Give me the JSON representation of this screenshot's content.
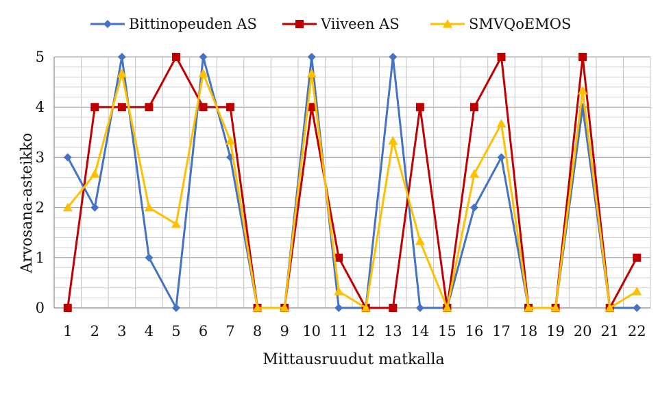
{
  "chart_data": {
    "type": "line",
    "title": "",
    "xlabel": "Mittausruudut matkalla",
    "ylabel": "Arvosana-asteikko",
    "ylim": [
      0,
      5
    ],
    "yticks": [
      "0",
      "1",
      "2",
      "3",
      "4",
      "5"
    ],
    "categories": [
      "1",
      "2",
      "3",
      "4",
      "5",
      "6",
      "7",
      "8",
      "9",
      "10",
      "11",
      "12",
      "13",
      "14",
      "15",
      "16",
      "17",
      "18",
      "19",
      "20",
      "21",
      "22"
    ],
    "grid": true,
    "legend_position": "top",
    "series": [
      {
        "name": "Bittinopeuden AS",
        "color": "#4472C4",
        "marker": "diamond",
        "values": [
          3,
          2,
          5,
          1,
          0,
          5,
          3,
          0,
          0,
          5,
          0,
          0,
          5,
          0,
          0,
          2,
          3,
          0,
          0,
          4,
          0,
          0
        ]
      },
      {
        "name": "Viiveen AS",
        "color": "#C00000",
        "marker": "square",
        "values": [
          0,
          4,
          4,
          4,
          5,
          4,
          4,
          0,
          0,
          4,
          1,
          0,
          0,
          4,
          0,
          4,
          5,
          0,
          0,
          5,
          0,
          1
        ]
      },
      {
        "name": "SMVQoEMOS",
        "color": "#FFC000",
        "marker": "triangle",
        "values": [
          2,
          2.67,
          4.67,
          2,
          1.67,
          4.67,
          3.33,
          0,
          0,
          4.67,
          0.33,
          0,
          3.33,
          1.33,
          0,
          2.67,
          3.67,
          0,
          0,
          4.33,
          0,
          0.33
        ]
      }
    ]
  }
}
